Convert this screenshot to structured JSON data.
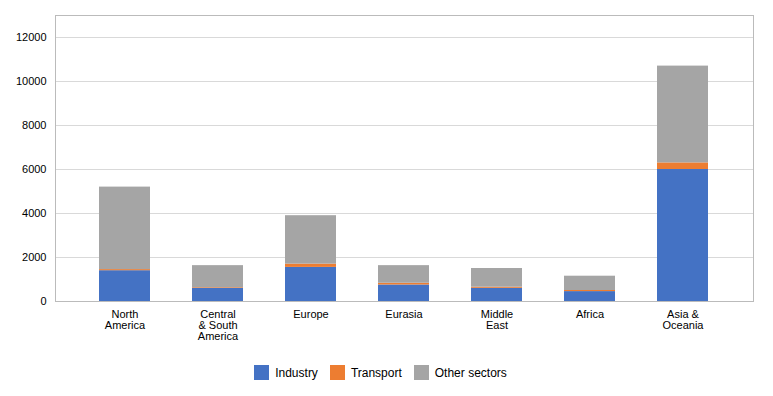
{
  "chart_data": {
    "type": "bar",
    "stacked": true,
    "categories": [
      "North\nAmerica",
      "Central\n& South\nAmerica",
      "Europe",
      "Eurasia",
      "Middle\nEast",
      "Africa",
      "Asia &\nOceania"
    ],
    "series": [
      {
        "name": "Industry",
        "color": "#4472C4",
        "values": [
          1400,
          600,
          1550,
          750,
          600,
          450,
          6000
        ]
      },
      {
        "name": "Transport",
        "color": "#ED7D31",
        "values": [
          50,
          30,
          150,
          80,
          50,
          50,
          300
        ]
      },
      {
        "name": "Other sectors",
        "color": "#A5A5A5",
        "values": [
          3750,
          1000,
          2200,
          800,
          850,
          650,
          4400
        ]
      }
    ],
    "ylim": [
      0,
      13000
    ],
    "yticks": [
      0,
      2000,
      4000,
      6000,
      8000,
      10000,
      12000
    ],
    "grid": true,
    "legend": "bottom"
  }
}
